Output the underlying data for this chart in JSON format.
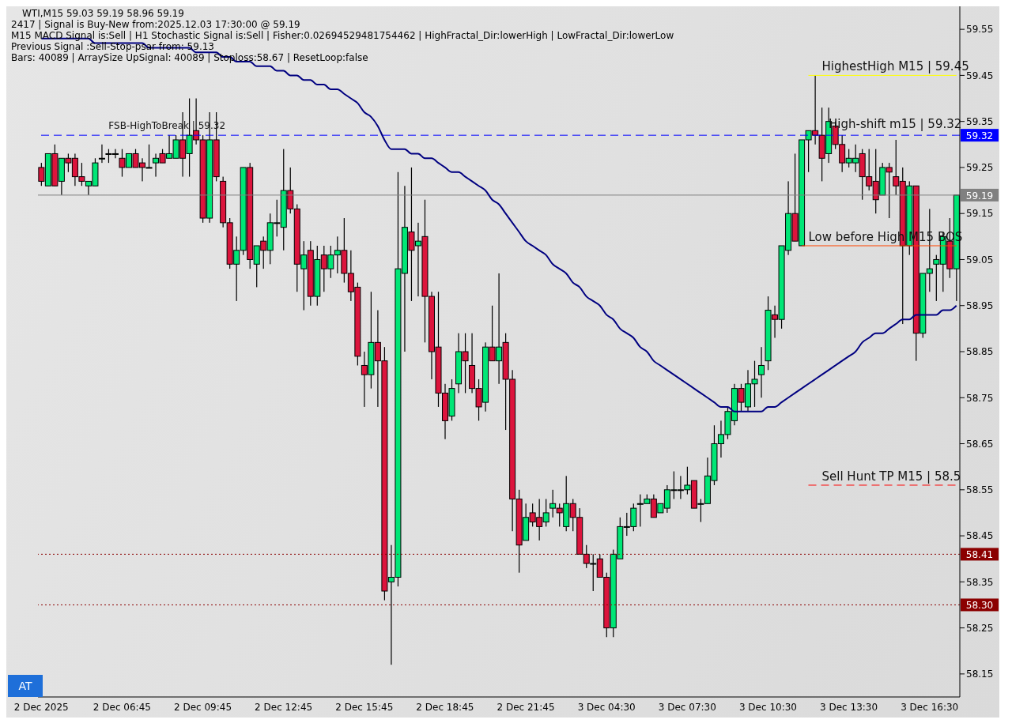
{
  "chart_data": {
    "type": "candlestick",
    "title": "WTI,M15 59.03 59.19 58.96 59.19",
    "annotations": [
      "2417 | Signal is Buy-New from:2025.12.03 17:30:00 @ 59.19",
      "M15 MACD Signal is:Sell | H1 Stochastic Signal is:Sell | Fisher:0.02694529481754462 | HighFractal_Dir:lowerHigh | LowFractal_Dir:lowerLow",
      "Previous Signal :Sell-Stop-psar from: 59.13",
      "Bars: 40089 | ArraySize UpSignal: 40089 | Stoploss:58.67 | ResetLoop:false",
      "FSB-HighToBreak | 59.32",
      "High-shift m15 | 59.32",
      "AT"
    ],
    "categories": [
      "2 Dec 2025",
      null,
      null,
      null,
      null,
      null,
      null,
      null,
      null,
      null,
      null,
      null,
      "2 Dec 06:45",
      null,
      null,
      null,
      null,
      null,
      null,
      null,
      null,
      null,
      null,
      null,
      "2 Dec 09:45",
      null,
      null,
      null,
      null,
      null,
      null,
      null,
      null,
      null,
      null,
      null,
      "2 Dec 12:45",
      null,
      null,
      null,
      null,
      null,
      null,
      null,
      null,
      null,
      null,
      null,
      "2 Dec 15:45",
      null,
      null,
      null,
      null,
      null,
      null,
      null,
      null,
      null,
      null,
      null,
      "2 Dec 18:45",
      null,
      null,
      null,
      null,
      null,
      null,
      null,
      null,
      null,
      null,
      null,
      "2 Dec 21:45",
      null,
      null,
      null,
      null,
      null,
      null,
      null,
      null,
      null,
      null,
      null,
      "3 Dec 04:30",
      null,
      null,
      null,
      null,
      null,
      null,
      null,
      null,
      null,
      null,
      null,
      "3 Dec 07:30",
      null,
      null,
      null,
      null,
      null,
      null,
      null,
      null,
      null,
      null,
      null,
      "3 Dec 10:30",
      null,
      null,
      null,
      null,
      null,
      null,
      null,
      null,
      null,
      null,
      null,
      "3 Dec 13:30",
      null,
      null,
      null,
      null,
      null,
      null,
      null,
      null,
      null,
      null,
      null,
      "3 Dec 16:30",
      null,
      null,
      null,
      null
    ],
    "ohlc": [
      [
        59.25,
        59.26,
        59.21,
        59.22
      ],
      [
        59.21,
        59.28,
        59.21,
        59.28
      ],
      [
        59.28,
        59.3,
        59.21,
        59.21
      ],
      [
        59.22,
        59.27,
        59.19,
        59.27
      ],
      [
        59.27,
        59.28,
        59.24,
        59.26
      ],
      [
        59.27,
        59.28,
        59.21,
        59.23
      ],
      [
        59.23,
        59.26,
        59.21,
        59.22
      ],
      [
        59.21,
        59.22,
        59.19,
        59.22
      ],
      [
        59.21,
        59.27,
        59.21,
        59.26
      ],
      [
        59.27,
        59.3,
        59.26,
        59.27
      ],
      [
        59.28,
        59.29,
        59.26,
        59.28
      ],
      [
        59.28,
        59.29,
        59.27,
        59.28
      ],
      [
        59.27,
        59.29,
        59.23,
        59.25
      ],
      [
        59.25,
        59.28,
        59.25,
        59.28
      ],
      [
        59.28,
        59.29,
        59.25,
        59.25
      ],
      [
        59.26,
        59.27,
        59.22,
        59.25
      ],
      [
        59.25,
        59.3,
        59.25,
        59.25
      ],
      [
        59.26,
        59.28,
        59.23,
        59.27
      ],
      [
        59.28,
        59.29,
        59.26,
        59.26
      ],
      [
        59.27,
        59.32,
        59.27,
        59.28
      ],
      [
        59.27,
        59.32,
        59.27,
        59.31
      ],
      [
        59.31,
        59.37,
        59.23,
        59.27
      ],
      [
        59.28,
        59.4,
        59.23,
        59.32
      ],
      [
        59.33,
        59.4,
        59.3,
        59.31
      ],
      [
        59.31,
        59.32,
        59.13,
        59.14
      ],
      [
        59.14,
        59.37,
        59.13,
        59.31
      ],
      [
        59.31,
        59.37,
        59.22,
        59.23
      ],
      [
        59.22,
        59.23,
        59.12,
        59.13
      ],
      [
        59.13,
        59.14,
        59.03,
        59.04
      ],
      [
        59.04,
        59.1,
        58.96,
        59.07
      ],
      [
        59.07,
        59.25,
        59.06,
        59.25
      ],
      [
        59.25,
        59.26,
        59.03,
        59.05
      ],
      [
        59.04,
        59.08,
        58.99,
        59.08
      ],
      [
        59.09,
        59.1,
        59.03,
        59.07
      ],
      [
        59.07,
        59.15,
        59.04,
        59.13
      ],
      [
        59.13,
        59.18,
        59.1,
        59.13
      ],
      [
        59.12,
        59.29,
        59.07,
        59.2
      ],
      [
        59.2,
        59.25,
        59.15,
        59.16
      ],
      [
        59.16,
        59.17,
        58.98,
        59.04
      ],
      [
        59.03,
        59.09,
        58.94,
        59.06
      ],
      [
        59.07,
        59.09,
        58.95,
        58.97
      ],
      [
        58.97,
        59.08,
        58.95,
        59.05
      ],
      [
        59.06,
        59.08,
        58.98,
        59.03
      ],
      [
        59.03,
        59.08,
        59.01,
        59.06
      ],
      [
        59.06,
        59.1,
        59.02,
        59.07
      ],
      [
        59.07,
        59.14,
        59.0,
        59.02
      ],
      [
        59.02,
        59.07,
        58.96,
        58.98
      ],
      [
        58.99,
        59.0,
        58.82,
        58.84
      ],
      [
        58.82,
        58.85,
        58.73,
        58.8
      ],
      [
        58.8,
        58.98,
        58.77,
        58.87
      ],
      [
        58.87,
        58.94,
        58.73,
        58.83
      ],
      [
        58.83,
        58.86,
        58.31,
        58.33
      ],
      [
        58.35,
        58.43,
        58.17,
        58.36
      ],
      [
        58.36,
        59.24,
        58.34,
        59.03
      ],
      [
        59.02,
        59.21,
        58.85,
        59.12
      ],
      [
        59.11,
        59.25,
        58.96,
        59.07
      ],
      [
        59.08,
        59.13,
        58.97,
        59.09
      ],
      [
        59.1,
        59.18,
        58.87,
        58.97
      ],
      [
        58.97,
        58.98,
        58.79,
        58.85
      ],
      [
        58.86,
        58.98,
        58.73,
        58.76
      ],
      [
        58.76,
        58.78,
        58.66,
        58.7
      ],
      [
        58.71,
        58.79,
        58.7,
        58.77
      ],
      [
        58.78,
        58.89,
        58.76,
        58.85
      ],
      [
        58.85,
        58.89,
        58.76,
        58.83
      ],
      [
        58.82,
        58.89,
        58.76,
        58.77
      ],
      [
        58.77,
        58.79,
        58.7,
        58.73
      ],
      [
        58.74,
        58.87,
        58.72,
        58.86
      ],
      [
        58.86,
        58.95,
        58.83,
        58.83
      ],
      [
        58.83,
        59.02,
        58.78,
        58.86
      ],
      [
        58.87,
        58.89,
        58.68,
        58.79
      ],
      [
        58.79,
        58.81,
        58.46,
        58.53
      ],
      [
        58.53,
        58.55,
        58.37,
        58.43
      ],
      [
        58.44,
        58.52,
        58.44,
        58.49
      ],
      [
        58.5,
        58.52,
        58.47,
        58.48
      ],
      [
        58.49,
        58.53,
        58.44,
        58.47
      ],
      [
        58.48,
        58.53,
        58.47,
        58.5
      ],
      [
        58.51,
        58.55,
        58.49,
        58.52
      ],
      [
        58.51,
        58.52,
        58.47,
        58.5
      ],
      [
        58.47,
        58.58,
        58.46,
        58.52
      ],
      [
        58.52,
        58.53,
        58.46,
        58.49
      ],
      [
        58.49,
        58.51,
        58.41,
        58.41
      ],
      [
        58.41,
        58.43,
        58.38,
        58.39
      ],
      [
        58.39,
        58.41,
        58.33,
        58.39
      ],
      [
        58.4,
        58.41,
        58.36,
        58.36
      ],
      [
        58.36,
        58.37,
        58.23,
        58.25
      ],
      [
        58.25,
        58.42,
        58.23,
        58.41
      ],
      [
        58.4,
        58.49,
        58.4,
        58.47
      ],
      [
        58.47,
        58.5,
        58.45,
        58.47
      ],
      [
        58.47,
        58.52,
        58.46,
        58.51
      ],
      [
        58.52,
        58.54,
        58.47,
        58.52
      ],
      [
        58.52,
        58.54,
        58.52,
        58.53
      ],
      [
        58.53,
        58.54,
        58.49,
        58.49
      ],
      [
        58.5,
        58.52,
        58.5,
        58.52
      ],
      [
        58.51,
        58.56,
        58.5,
        58.55
      ],
      [
        58.55,
        58.59,
        58.53,
        58.55
      ],
      [
        58.55,
        58.58,
        58.53,
        58.55
      ],
      [
        58.55,
        58.6,
        58.54,
        58.56
      ],
      [
        58.57,
        58.57,
        58.51,
        58.51
      ],
      [
        58.52,
        58.53,
        58.48,
        58.52
      ],
      [
        58.52,
        58.62,
        58.52,
        58.58
      ],
      [
        58.57,
        58.69,
        58.56,
        58.65
      ],
      [
        58.65,
        58.7,
        58.62,
        58.67
      ],
      [
        58.67,
        58.73,
        58.66,
        58.72
      ],
      [
        58.7,
        58.78,
        58.69,
        58.77
      ],
      [
        58.77,
        58.78,
        58.72,
        58.74
      ],
      [
        58.73,
        58.81,
        58.72,
        58.78
      ],
      [
        58.78,
        58.83,
        58.73,
        58.79
      ],
      [
        58.8,
        58.86,
        58.75,
        58.82
      ],
      [
        58.83,
        58.97,
        58.81,
        58.94
      ],
      [
        58.93,
        58.95,
        58.88,
        58.92
      ],
      [
        58.92,
        59.08,
        58.9,
        59.08
      ],
      [
        59.07,
        59.22,
        59.06,
        59.15
      ],
      [
        59.15,
        59.28,
        59.09,
        59.09
      ],
      [
        59.08,
        59.31,
        59.08,
        59.31
      ],
      [
        59.31,
        59.33,
        59.24,
        59.33
      ],
      [
        59.33,
        59.45,
        59.3,
        59.32
      ],
      [
        59.32,
        59.38,
        59.22,
        59.27
      ],
      [
        59.28,
        59.38,
        59.26,
        59.35
      ],
      [
        59.34,
        59.35,
        59.29,
        59.3
      ],
      [
        59.3,
        59.32,
        59.24,
        59.26
      ],
      [
        59.26,
        59.29,
        59.25,
        59.27
      ],
      [
        59.26,
        59.3,
        59.24,
        59.27
      ],
      [
        59.28,
        59.29,
        59.18,
        59.23
      ],
      [
        59.23,
        59.29,
        59.2,
        59.21
      ],
      [
        59.22,
        59.29,
        59.15,
        59.18
      ],
      [
        59.19,
        59.26,
        59.19,
        59.25
      ],
      [
        59.25,
        59.26,
        59.14,
        59.24
      ],
      [
        59.23,
        59.31,
        59.19,
        59.21
      ],
      [
        59.22,
        59.25,
        58.91,
        59.08
      ],
      [
        59.08,
        59.22,
        59.06,
        59.21
      ],
      [
        59.21,
        59.21,
        58.83,
        58.89
      ],
      [
        58.89,
        59.02,
        58.88,
        59.02
      ],
      [
        59.02,
        59.16,
        58.98,
        59.03
      ],
      [
        59.04,
        59.06,
        58.96,
        59.05
      ],
      [
        59.04,
        59.11,
        58.98,
        59.1
      ],
      [
        59.09,
        59.14,
        59.01,
        59.03
      ],
      [
        59.03,
        59.19,
        58.96,
        59.19
      ]
    ],
    "colors": [
      "#dc143c",
      "#00e676",
      "#dc143c",
      "#00e676",
      "#dc143c",
      "#dc143c",
      "#dc143c",
      "#00e676",
      "#00e676",
      "#00e676",
      "#00e676",
      "#00e676",
      "#dc143c",
      "#00e676",
      "#dc143c",
      "#dc143c",
      "#00e676",
      "#00e676",
      "#dc143c",
      "#00e676",
      "#00e676",
      "#dc143c",
      "#00e676",
      "#dc143c",
      "#dc143c",
      "#00e676",
      "#dc143c",
      "#dc143c",
      "#dc143c",
      "#00e676",
      "#00e676",
      "#dc143c",
      "#00e676",
      "#dc143c",
      "#00e676",
      "#00e676",
      "#00e676",
      "#dc143c",
      "#dc143c",
      "#00e676",
      "#dc143c",
      "#00e676",
      "#dc143c",
      "#00e676",
      "#00e676",
      "#dc143c",
      "#dc143c",
      "#dc143c",
      "#dc143c",
      "#00e676",
      "#dc143c",
      "#dc143c",
      "#00e676",
      "#00e676",
      "#00e676",
      "#dc143c",
      "#00e676",
      "#dc143c",
      "#dc143c",
      "#dc143c",
      "#dc143c",
      "#00e676",
      "#00e676",
      "#dc143c",
      "#dc143c",
      "#dc143c",
      "#00e676",
      "#dc143c",
      "#00e676",
      "#dc143c",
      "#dc143c",
      "#dc143c",
      "#00e676",
      "#dc143c",
      "#dc143c",
      "#00e676",
      "#00e676",
      "#dc143c",
      "#00e676",
      "#dc143c",
      "#dc143c",
      "#dc143c",
      "#00e676",
      "#dc143c",
      "#dc143c",
      "#00e676",
      "#00e676",
      "#00e676",
      "#00e676",
      "#00e676",
      "#00e676",
      "#dc143c",
      "#00e676",
      "#00e676",
      "#00e676",
      "#00e676",
      "#00e676",
      "#dc143c",
      "#00e676",
      "#00e676",
      "#00e676",
      "#00e676",
      "#00e676",
      "#00e676",
      "#dc143c",
      "#00e676",
      "#00e676",
      "#00e676",
      "#00e676",
      "#dc143c",
      "#00e676",
      "#00e676",
      "#dc143c",
      "#00e676",
      "#00e676",
      "#dc143c",
      "#dc143c",
      "#00e676",
      "#dc143c",
      "#dc143c",
      "#00e676",
      "#00e676",
      "#dc143c",
      "#dc143c",
      "#dc143c",
      "#00e676",
      "#dc143c",
      "#dc143c",
      "#dc143c",
      "#00e676",
      "#dc143c",
      "#00e676",
      "#00e676",
      "#00e676",
      "#00e676",
      "#dc143c",
      "#00e676"
    ],
    "series": [
      {
        "type": "line",
        "color": "#000080",
        "values": [
          59.53,
          59.53,
          59.53,
          59.53,
          59.53,
          59.53,
          59.53,
          59.53,
          59.52,
          59.52,
          59.52,
          59.52,
          59.52,
          59.52,
          59.52,
          59.52,
          59.51,
          59.51,
          59.51,
          59.51,
          59.51,
          59.51,
          59.51,
          59.5,
          59.5,
          59.5,
          59.5,
          59.49,
          59.49,
          59.48,
          59.48,
          59.48,
          59.47,
          59.47,
          59.47,
          59.46,
          59.46,
          59.45,
          59.45,
          59.44,
          59.44,
          59.43,
          59.43,
          59.42,
          59.42,
          59.41,
          59.4,
          59.39,
          59.37,
          59.36,
          59.34,
          59.31,
          59.29,
          59.29,
          59.29,
          59.28,
          59.28,
          59.27,
          59.27,
          59.26,
          59.25,
          59.24,
          59.24,
          59.23,
          59.22,
          59.21,
          59.2,
          59.18,
          59.17,
          59.15,
          59.13,
          59.11,
          59.09,
          59.08,
          59.07,
          59.06,
          59.04,
          59.03,
          59.02,
          59.0,
          58.99,
          58.97,
          58.96,
          58.95,
          58.93,
          58.92,
          58.9,
          58.89,
          58.88,
          58.86,
          58.85,
          58.83,
          58.82,
          58.81,
          58.8,
          58.79,
          58.78,
          58.77,
          58.76,
          58.75,
          58.74,
          58.73,
          58.73,
          58.72,
          58.72,
          58.72,
          58.72,
          58.72,
          58.73,
          58.73,
          58.74,
          58.75,
          58.76,
          58.77,
          58.78,
          58.79,
          58.8,
          58.81,
          58.82,
          58.83,
          58.84,
          58.85,
          58.87,
          58.88,
          58.89,
          58.89,
          58.9,
          58.91,
          58.92,
          58.92,
          58.93,
          58.93,
          58.93,
          58.93,
          58.94,
          58.94,
          58.95
        ]
      }
    ],
    "ylim": [
      58.1,
      59.6
    ],
    "yticks": [
      58.15,
      58.25,
      58.35,
      58.45,
      58.55,
      58.65,
      58.75,
      58.85,
      58.95,
      59.05,
      59.15,
      59.25,
      59.35,
      59.45,
      59.55
    ],
    "ref_lines": [
      {
        "axis": "y",
        "value": 59.32,
        "label": "59.32",
        "color": "#0000ff",
        "line_style": "dashed"
      },
      {
        "axis": "y",
        "value": 59.19,
        "label": "59.19",
        "color": "#808080",
        "line_style": "solid"
      },
      {
        "axis": "y",
        "value": 58.41,
        "label": "58.41",
        "color": "#8b0000",
        "line_style": "dotted"
      },
      {
        "axis": "y",
        "value": 58.3,
        "label": "58.30",
        "color": "#8b0000",
        "line_style": "dotted"
      },
      {
        "axis": "y",
        "value": 59.45,
        "label": "HighestHigh   M15 | 59.45",
        "color": "#ffff00",
        "line_style": "solid"
      },
      {
        "axis": "y",
        "value": 59.08,
        "label": "Low before High   M15 BOS",
        "color": "#ff4500",
        "line_style": "solid"
      },
      {
        "axis": "y",
        "value": 58.56,
        "label": "Sell Hunt TP M15 | 58.5",
        "color": "#ff0000",
        "line_style": "dashed"
      }
    ]
  }
}
